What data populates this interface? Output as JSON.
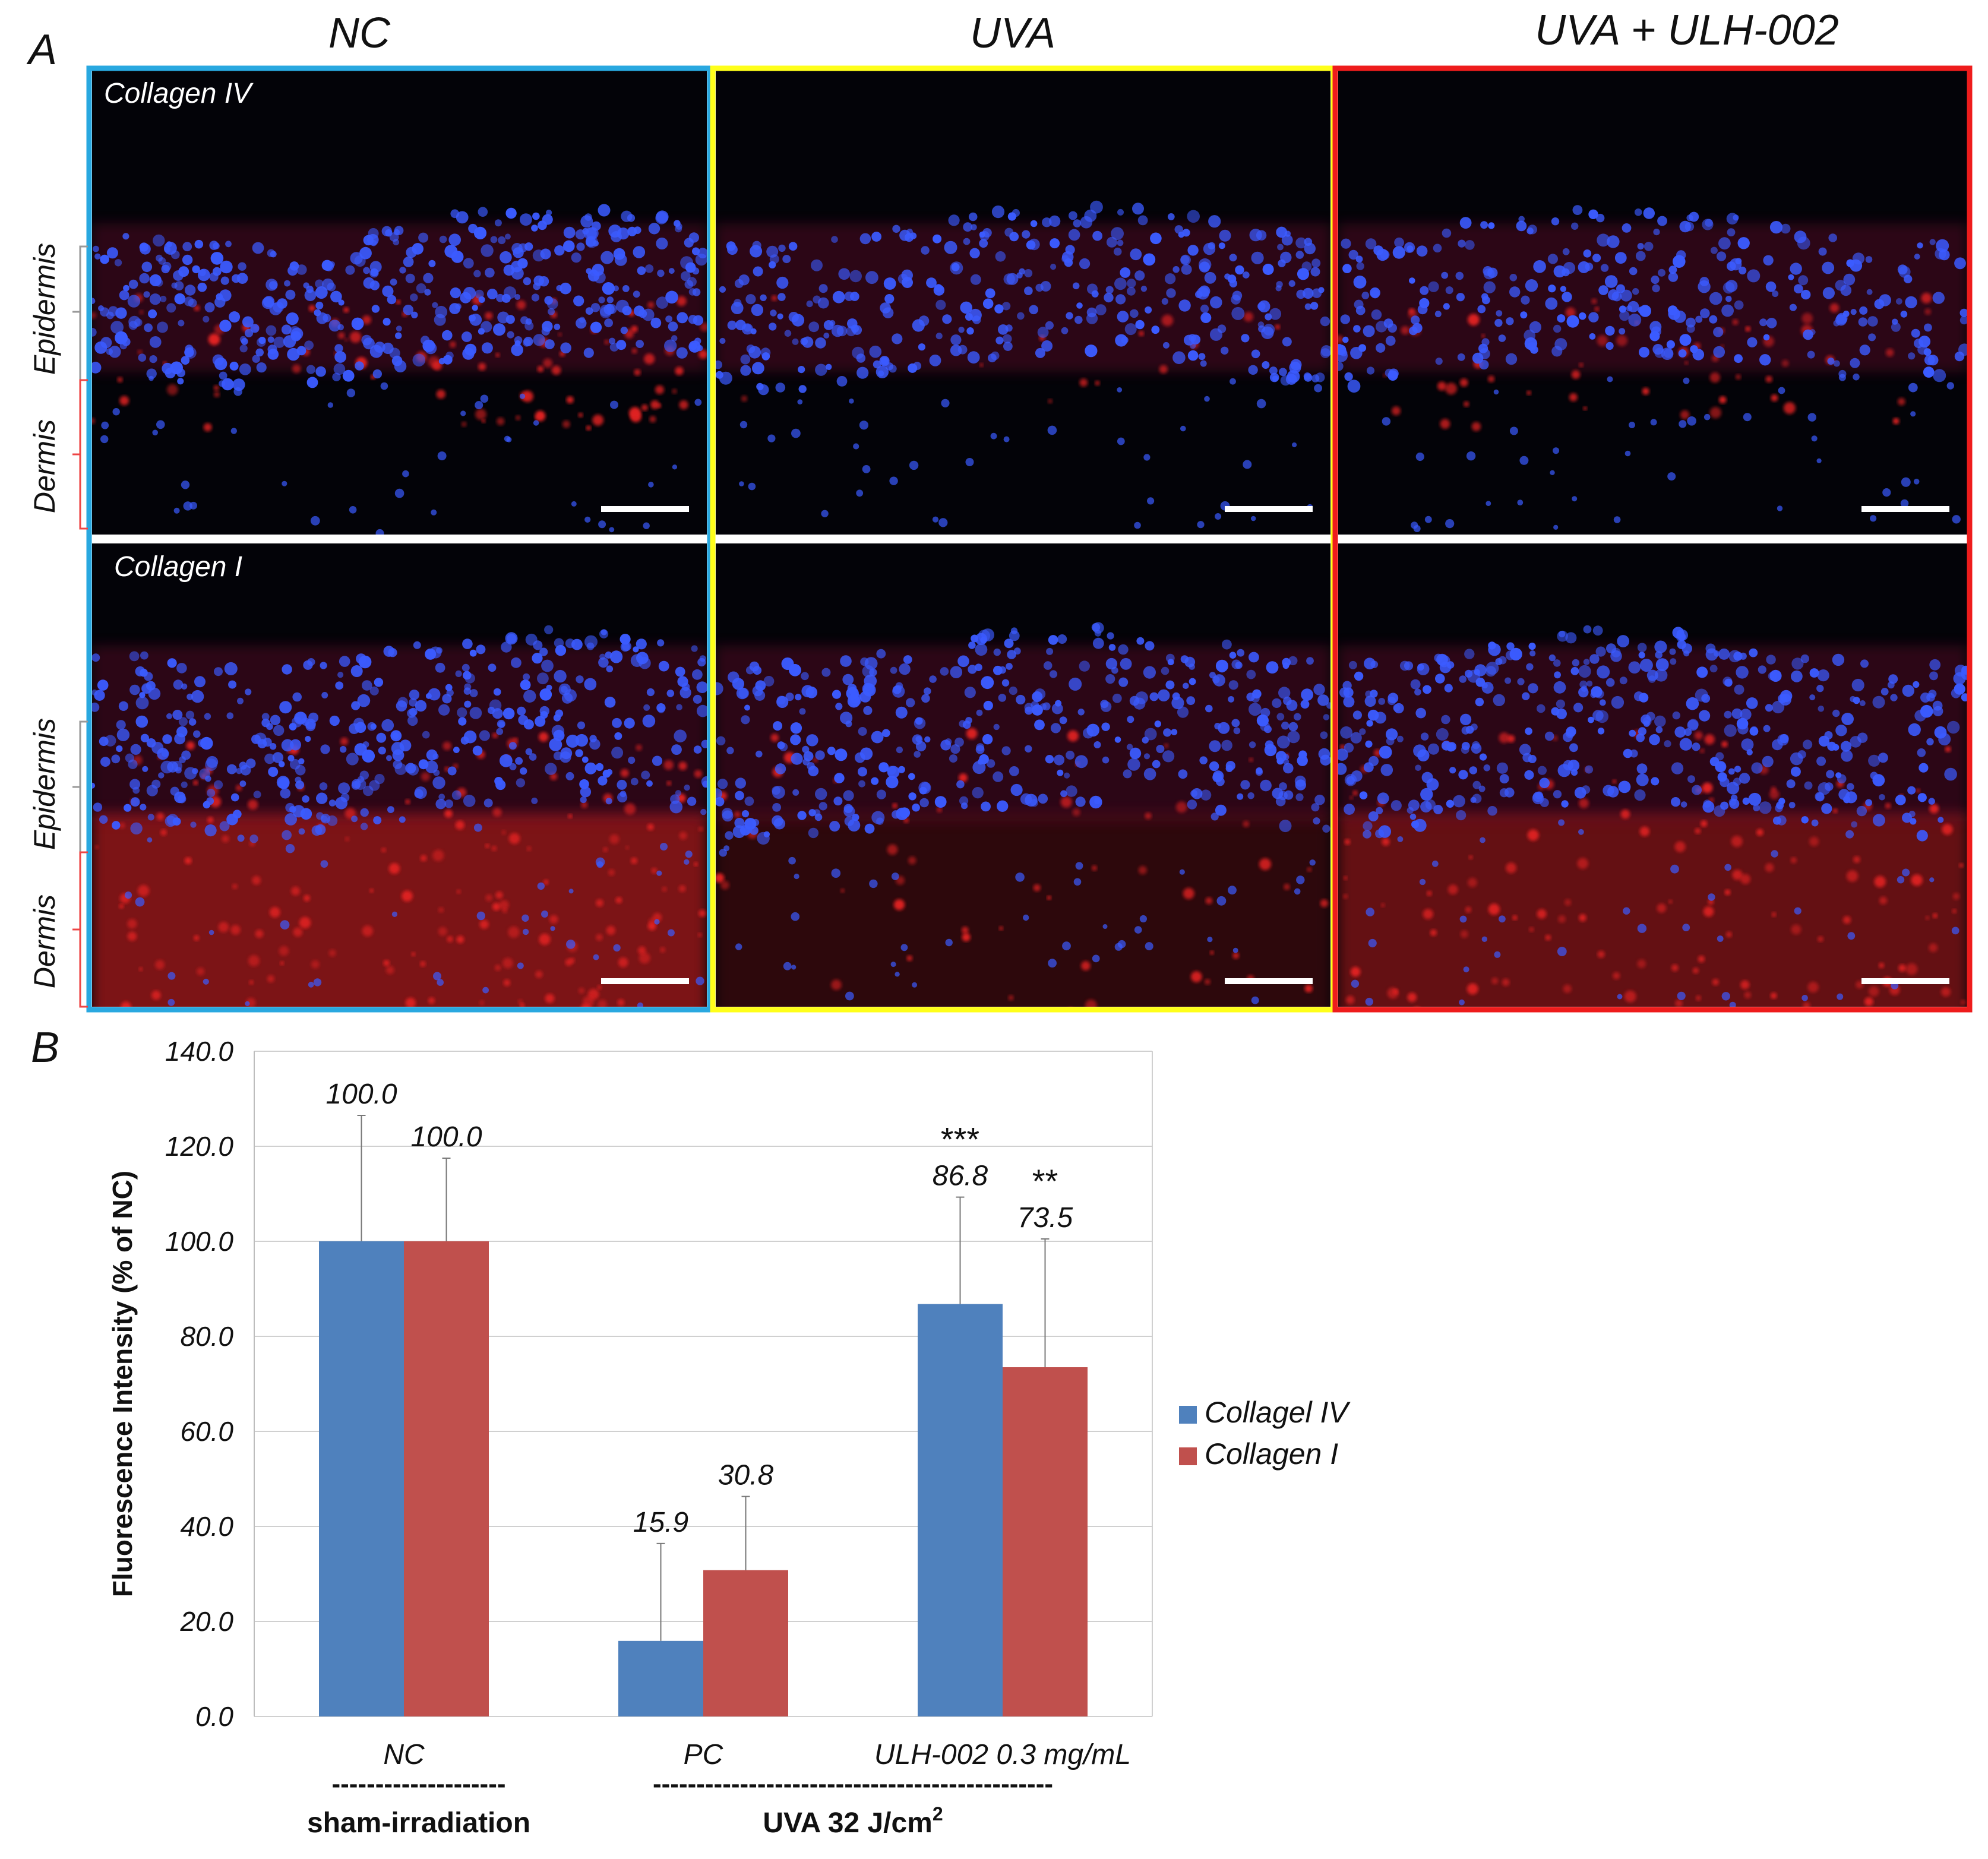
{
  "panel_a": {
    "label": "A",
    "conditions": [
      {
        "title": "NC",
        "frame_color": "#29a8e0"
      },
      {
        "title": "UVA",
        "frame_color": "#ffff1a"
      },
      {
        "title": "UVA + ULH-002",
        "frame_color": "#ee1c1c"
      }
    ],
    "rows": [
      {
        "stain": "Collagen IV",
        "layer_labels": [
          "Epidermis",
          "Dermis"
        ]
      },
      {
        "stain": "Collagen I",
        "layer_labels": [
          "Epidermis",
          "Dermis"
        ]
      }
    ],
    "colors": {
      "nuclei": "#3b5bff",
      "collagen": "#e02020",
      "background": "#030308"
    }
  },
  "panel_b": {
    "label": "B",
    "chart_data": {
      "type": "bar",
      "categories": [
        "NC",
        "PC",
        "ULH-002 0.3 mg/mL"
      ],
      "ylabel": "Fluorescence Intensity (% of NC)",
      "ylim": [
        0,
        140
      ],
      "yticks": [
        "0.0",
        "20.0",
        "40.0",
        "60.0",
        "80.0",
        "100.0",
        "120.0",
        "140.0"
      ],
      "grid": true,
      "legend_position": "right",
      "series": [
        {
          "name": "Collagel IV",
          "color": "#4f81bd",
          "values": [
            100.0,
            15.9,
            86.8
          ],
          "errors": [
            26.5,
            20.5,
            22.5
          ],
          "labels": [
            "100.0",
            "15.9",
            "86.8"
          ],
          "stars": [
            "",
            "",
            "***"
          ]
        },
        {
          "name": "Collagen I",
          "color": "#c0504d",
          "values": [
            100.0,
            30.8,
            73.5
          ],
          "errors": [
            17.5,
            15.5,
            27.0
          ],
          "labels": [
            "100.0",
            "30.8",
            "73.5"
          ],
          "stars": [
            "",
            "",
            "**"
          ]
        }
      ],
      "groups": [
        {
          "dashes": "--------------------",
          "label": "sham-irradiation"
        },
        {
          "dashes": "----------------------------------------------",
          "label": "UVA 32 J/cm",
          "sup": "2"
        }
      ]
    }
  }
}
